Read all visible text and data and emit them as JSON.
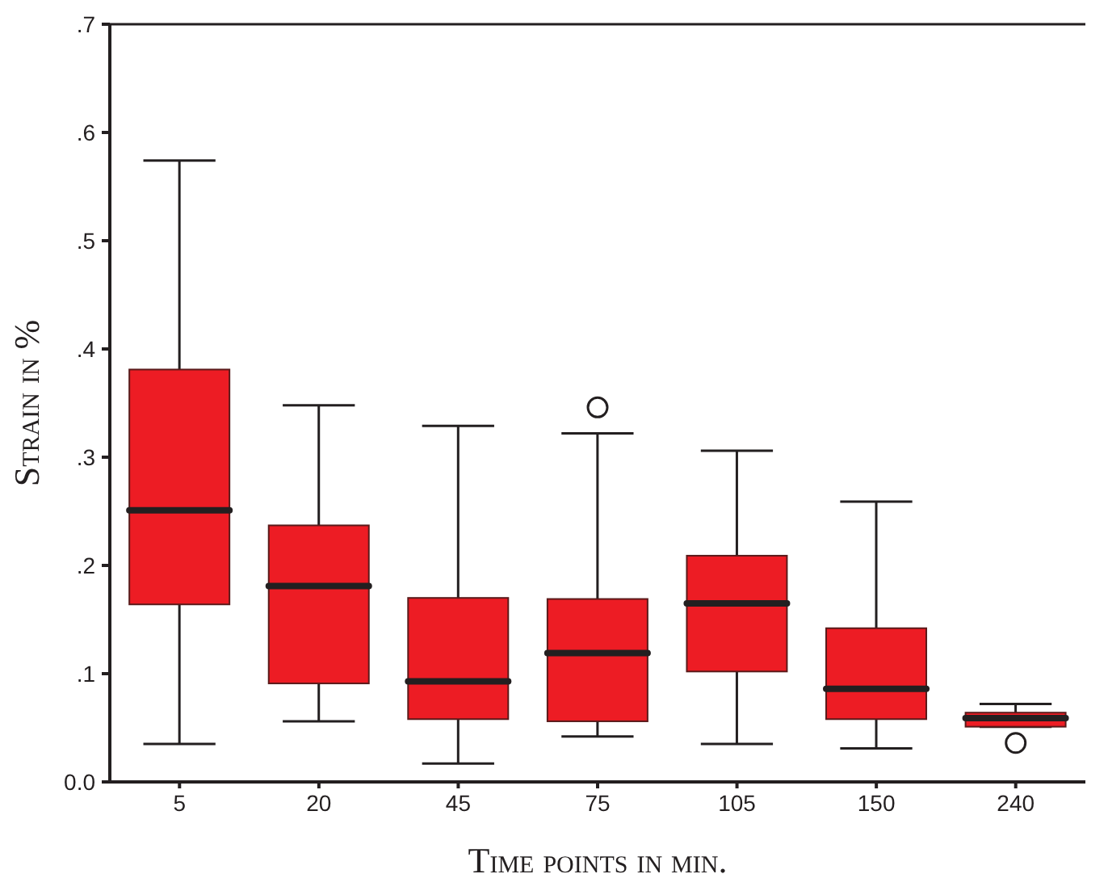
{
  "chart_data": {
    "type": "box",
    "xlabel": "Time points in min.",
    "ylabel": "Strain in %",
    "categories": [
      "5",
      "20",
      "45",
      "75",
      "105",
      "150",
      "240"
    ],
    "color": "#ed1c24",
    "boxes": [
      {
        "low": 0.035,
        "q1": 0.164,
        "median": 0.251,
        "q3": 0.381,
        "high": 0.574
      },
      {
        "low": 0.056,
        "q1": 0.091,
        "median": 0.181,
        "q3": 0.237,
        "high": 0.348
      },
      {
        "low": 0.017,
        "q1": 0.058,
        "median": 0.093,
        "q3": 0.17,
        "high": 0.329
      },
      {
        "low": 0.042,
        "q1": 0.056,
        "median": 0.119,
        "q3": 0.169,
        "high": 0.322,
        "outliers": [
          0.346
        ]
      },
      {
        "low": 0.035,
        "q1": 0.102,
        "median": 0.165,
        "q3": 0.209,
        "high": 0.306
      },
      {
        "low": 0.031,
        "q1": 0.058,
        "median": 0.086,
        "q3": 0.142,
        "high": 0.259
      },
      {
        "low": 0.051,
        "q1": 0.051,
        "median": 0.059,
        "q3": 0.064,
        "high": 0.072,
        "outliers": [
          0.036
        ]
      }
    ],
    "ylim": [
      0,
      0.7
    ],
    "yticks": [
      {
        "value": 0,
        "label": "0.0"
      },
      {
        "value": 0.1,
        "label": ".1"
      },
      {
        "value": 0.2,
        "label": ".2"
      },
      {
        "value": 0.3,
        "label": ".3"
      },
      {
        "value": 0.4,
        "label": ".4"
      },
      {
        "value": 0.5,
        "label": ".5"
      },
      {
        "value": 0.6,
        "label": ".6"
      },
      {
        "value": 0.7,
        "label": ".7"
      }
    ],
    "grid": false,
    "legend": false
  }
}
